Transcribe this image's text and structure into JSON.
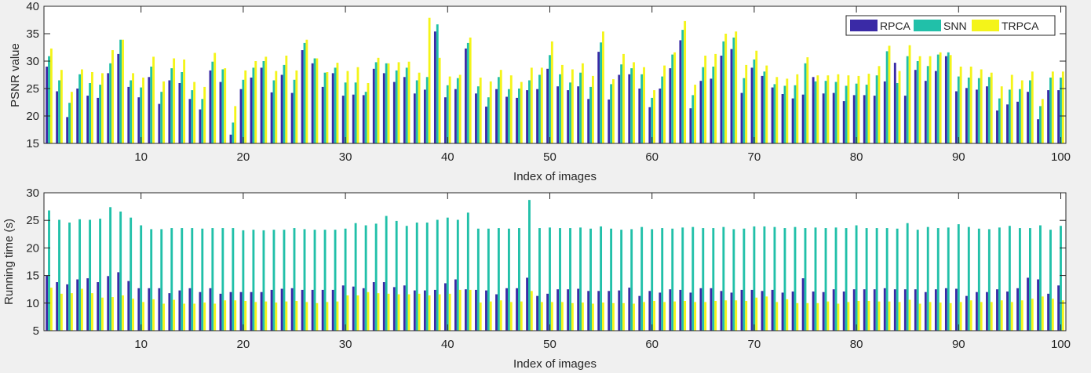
{
  "figure": {
    "background": "#f0f0f0",
    "series_colors": {
      "RPCA": "#3a2aa6",
      "SNN": "#21c0a9",
      "TRPCA": "#f4f419"
    }
  },
  "chart_data": [
    {
      "type": "bar",
      "xlabel": "Index of images",
      "ylabel": "PSNR value",
      "xlim": [
        0.5,
        100.5
      ],
      "ylim": [
        15,
        40
      ],
      "xticks": [
        10,
        20,
        30,
        40,
        50,
        60,
        70,
        80,
        90,
        100
      ],
      "yticks": [
        15,
        20,
        25,
        30,
        35,
        40
      ],
      "grid": false,
      "legend": {
        "position": "top-right",
        "entries": [
          "RPCA",
          "SNN",
          "TRPCA"
        ]
      },
      "categories": [
        1,
        2,
        3,
        4,
        5,
        6,
        7,
        8,
        9,
        10,
        11,
        12,
        13,
        14,
        15,
        16,
        17,
        18,
        19,
        20,
        21,
        22,
        23,
        24,
        25,
        26,
        27,
        28,
        29,
        30,
        31,
        32,
        33,
        34,
        35,
        36,
        37,
        38,
        39,
        40,
        41,
        42,
        43,
        44,
        45,
        46,
        47,
        48,
        49,
        50,
        51,
        52,
        53,
        54,
        55,
        56,
        57,
        58,
        59,
        60,
        61,
        62,
        63,
        64,
        65,
        66,
        67,
        68,
        69,
        70,
        71,
        72,
        73,
        74,
        75,
        76,
        77,
        78,
        79,
        80,
        81,
        82,
        83,
        84,
        85,
        86,
        87,
        88,
        89,
        90,
        91,
        92,
        93,
        94,
        95,
        96,
        97,
        98,
        99,
        100
      ],
      "series": [
        {
          "name": "RPCA",
          "values": [
            29.0,
            24.5,
            19.8,
            25.0,
            23.7,
            23.3,
            27.8,
            31.3,
            25.3,
            23.4,
            27.1,
            22.2,
            26.5,
            26.0,
            23.1,
            21.2,
            28.3,
            26.2,
            16.6,
            24.9,
            27.0,
            28.8,
            24.3,
            27.5,
            24.2,
            32.0,
            29.6,
            25.3,
            27.8,
            23.7,
            23.9,
            23.8,
            28.6,
            27.8,
            26.2,
            27.1,
            24.1,
            24.8,
            35.4,
            23.4,
            24.9,
            32.3,
            24.1,
            21.7,
            24.9,
            23.5,
            23.3,
            24.7,
            24.9,
            28.6,
            25.4,
            24.7,
            25.4,
            23.1,
            31.7,
            23.0,
            27.5,
            27.6,
            25.0,
            21.6,
            25.0,
            28.7,
            33.8,
            21.4,
            26.4,
            26.8,
            31.0,
            32.2,
            24.2,
            28.8,
            27.3,
            25.2,
            24.0,
            23.2,
            23.9,
            27.1,
            24.1,
            24.2,
            22.7,
            23.8,
            23.8,
            23.7,
            26.3,
            29.7,
            23.7,
            28.4,
            26.4,
            28.2,
            30.9,
            24.5,
            25.1,
            24.8,
            25.4,
            21.0,
            22.1,
            22.6,
            24.4,
            19.4,
            24.7,
            24.7
          ]
        },
        {
          "name": "SNN",
          "values": [
            30.9,
            26.5,
            22.4,
            27.6,
            26.0,
            25.7,
            29.6,
            33.9,
            26.5,
            25.2,
            29.0,
            24.4,
            28.7,
            28.0,
            24.7,
            23.1,
            29.9,
            28.5,
            18.8,
            26.6,
            28.8,
            30.0,
            26.5,
            29.3,
            26.6,
            33.3,
            30.5,
            27.9,
            28.8,
            26.1,
            26.1,
            24.4,
            29.8,
            29.6,
            28.3,
            28.8,
            26.5,
            27.1,
            36.7,
            25.6,
            26.9,
            33.3,
            25.4,
            23.4,
            27.1,
            24.9,
            25.0,
            26.5,
            27.5,
            31.1,
            27.6,
            26.1,
            27.9,
            25.3,
            33.4,
            25.8,
            29.4,
            28.7,
            27.6,
            23.3,
            27.2,
            31.2,
            35.7,
            23.8,
            28.9,
            29.0,
            33.6,
            34.3,
            26.9,
            30.3,
            28.1,
            25.8,
            25.5,
            25.6,
            29.6,
            26.3,
            26.4,
            26.2,
            25.5,
            25.9,
            25.7,
            27.4,
            31.8,
            26.0,
            30.9,
            30.0,
            29.1,
            31.2,
            31.6,
            27.2,
            27.0,
            26.9,
            27.1,
            23.2,
            24.8,
            24.9,
            26.5,
            21.8,
            27.0,
            27.0
          ]
        },
        {
          "name": "TRPCA",
          "values": [
            32.3,
            28.4,
            24.4,
            28.5,
            28.0,
            27.8,
            32.0,
            33.9,
            27.8,
            27.0,
            30.8,
            26.3,
            30.5,
            30.3,
            26.2,
            25.3,
            31.5,
            28.7,
            21.8,
            28.3,
            30.0,
            30.8,
            28.2,
            31.0,
            28.3,
            33.9,
            30.5,
            28.0,
            29.7,
            28.2,
            28.9,
            26.0,
            30.6,
            29.6,
            29.8,
            29.9,
            27.9,
            37.9,
            30.6,
            27.2,
            27.5,
            34.3,
            27.0,
            26.3,
            28.4,
            27.4,
            26.2,
            28.8,
            28.8,
            33.6,
            29.3,
            28.5,
            29.6,
            27.3,
            35.4,
            26.7,
            31.3,
            29.8,
            28.9,
            24.7,
            29.2,
            31.6,
            37.3,
            25.7,
            31.0,
            31.3,
            35.0,
            35.4,
            29.3,
            31.9,
            29.2,
            27.1,
            26.8,
            27.6,
            30.7,
            27.4,
            27.4,
            27.6,
            27.4,
            27.3,
            27.7,
            29.1,
            32.8,
            28.2,
            32.9,
            30.9,
            30.9,
            31.6,
            31.1,
            29.0,
            29.0,
            28.5,
            27.9,
            25.4,
            27.5,
            26.5,
            28.1,
            23.1,
            28.1,
            28.1
          ]
        }
      ]
    },
    {
      "type": "bar",
      "xlabel": "Index of images",
      "ylabel": "Running time (s)",
      "xlim": [
        0.5,
        100.5
      ],
      "ylim": [
        5,
        30
      ],
      "xticks": [
        10,
        20,
        30,
        40,
        50,
        60,
        70,
        80,
        90,
        100
      ],
      "yticks": [
        5,
        10,
        15,
        20,
        25,
        30
      ],
      "grid": false,
      "categories": [
        1,
        2,
        3,
        4,
        5,
        6,
        7,
        8,
        9,
        10,
        11,
        12,
        13,
        14,
        15,
        16,
        17,
        18,
        19,
        20,
        21,
        22,
        23,
        24,
        25,
        26,
        27,
        28,
        29,
        30,
        31,
        32,
        33,
        34,
        35,
        36,
        37,
        38,
        39,
        40,
        41,
        42,
        43,
        44,
        45,
        46,
        47,
        48,
        49,
        50,
        51,
        52,
        53,
        54,
        55,
        56,
        57,
        58,
        59,
        60,
        61,
        62,
        63,
        64,
        65,
        66,
        67,
        68,
        69,
        70,
        71,
        72,
        73,
        74,
        75,
        76,
        77,
        78,
        79,
        80,
        81,
        82,
        83,
        84,
        85,
        86,
        87,
        88,
        89,
        90,
        91,
        92,
        93,
        94,
        95,
        96,
        97,
        98,
        99,
        100
      ],
      "series": [
        {
          "name": "RPCA",
          "values": [
            15.0,
            13.8,
            13.4,
            14.3,
            14.5,
            13.8,
            14.9,
            15.6,
            14.0,
            12.7,
            12.7,
            12.7,
            11.8,
            12.3,
            12.7,
            12.0,
            12.7,
            11.7,
            12.0,
            12.0,
            12.0,
            12.0,
            12.4,
            12.6,
            12.7,
            12.4,
            12.4,
            12.4,
            12.4,
            13.2,
            13.0,
            12.7,
            13.8,
            13.8,
            12.9,
            13.2,
            12.3,
            12.3,
            12.4,
            13.6,
            14.3,
            12.5,
            12.4,
            12.3,
            11.6,
            12.7,
            12.7,
            14.6,
            11.3,
            11.7,
            12.5,
            12.5,
            12.6,
            12.2,
            12.2,
            12.2,
            12.3,
            12.8,
            11.3,
            12.2,
            11.9,
            12.5,
            12.4,
            11.9,
            12.7,
            12.7,
            12.2,
            11.9,
            12.4,
            12.4,
            12.2,
            12.4,
            11.9,
            12.1,
            14.5,
            12.1,
            12.0,
            12.5,
            12.1,
            12.5,
            12.5,
            12.5,
            12.7,
            12.5,
            12.5,
            12.5,
            12.0,
            12.5,
            12.7,
            12.6,
            11.3,
            12.0,
            12.0,
            12.5,
            12.1,
            12.7,
            14.6,
            14.3,
            11.7,
            13.2
          ]
        },
        {
          "name": "SNN",
          "values": [
            26.8,
            25.1,
            24.6,
            25.2,
            25.1,
            25.3,
            27.4,
            26.6,
            25.5,
            24.1,
            23.4,
            23.4,
            23.6,
            23.6,
            23.6,
            23.5,
            23.6,
            23.6,
            23.6,
            23.2,
            23.3,
            23.2,
            23.3,
            23.3,
            23.6,
            23.4,
            23.3,
            23.3,
            23.3,
            23.5,
            24.5,
            24.1,
            24.4,
            25.8,
            24.9,
            24.0,
            24.6,
            24.6,
            25.1,
            25.5,
            25.1,
            26.4,
            23.5,
            23.5,
            23.6,
            23.5,
            23.6,
            28.7,
            23.6,
            23.7,
            23.6,
            23.6,
            23.7,
            23.5,
            23.9,
            23.5,
            23.3,
            23.4,
            23.8,
            23.4,
            23.6,
            23.5,
            23.7,
            23.8,
            23.6,
            23.6,
            23.8,
            23.4,
            23.5,
            23.9,
            23.9,
            23.8,
            23.6,
            23.8,
            23.6,
            23.7,
            23.6,
            23.7,
            23.6,
            24.1,
            23.6,
            23.6,
            23.6,
            23.5,
            24.5,
            23.3,
            23.8,
            23.6,
            23.7,
            24.3,
            23.8,
            23.5,
            23.4,
            23.7,
            24.0,
            23.6,
            23.6,
            24.1,
            23.3,
            24.0
          ]
        },
        {
          "name": "TRPCA",
          "values": [
            12.8,
            11.7,
            11.8,
            12.6,
            11.8,
            11.0,
            11.1,
            11.4,
            10.8,
            10.2,
            10.7,
            9.9,
            10.6,
            9.9,
            9.9,
            10.1,
            9.9,
            10.5,
            10.5,
            10.4,
            10.2,
            10.3,
            10.1,
            10.3,
            10.4,
            10.2,
            10.0,
            10.2,
            10.3,
            11.4,
            11.4,
            12.0,
            11.8,
            11.7,
            11.6,
            11.6,
            11.7,
            11.4,
            11.6,
            11.7,
            12.4,
            12.4,
            10.1,
            10.3,
            10.5,
            10.2,
            10.3,
            12.2,
            10.2,
            10.2,
            10.2,
            10.0,
            10.1,
            9.9,
            10.1,
            10.0,
            10.0,
            9.9,
            10.2,
            10.4,
            10.2,
            10.3,
            10.4,
            10.2,
            10.2,
            10.4,
            10.5,
            10.5,
            10.4,
            11.0,
            11.2,
            10.2,
            10.7,
            10.0,
            10.0,
            10.0,
            10.3,
            9.9,
            10.2,
            10.4,
            10.4,
            10.3,
            10.3,
            10.2,
            10.6,
            9.9,
            10.2,
            10.1,
            10.0,
            10.2,
            10.5,
            10.2,
            10.2,
            10.5,
            10.2,
            10.5,
            10.8,
            11.2,
            10.8,
            10.5
          ]
        }
      ]
    }
  ]
}
